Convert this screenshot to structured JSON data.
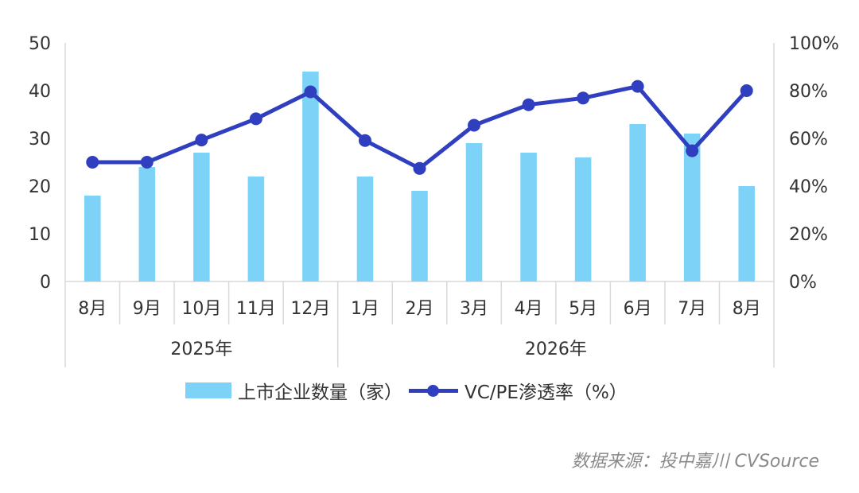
{
  "chart_data": {
    "type": "bar",
    "categories": [
      "8月",
      "9月",
      "10月",
      "11月",
      "12月",
      "1月",
      "2月",
      "3月",
      "4月",
      "5月",
      "6月",
      "7月",
      "8月"
    ],
    "groups": [
      {
        "label": "2025年",
        "count": 5
      },
      {
        "label": "2026年",
        "count": 8
      }
    ],
    "series": [
      {
        "name": "上市企业数量（家）",
        "type": "bar",
        "axis": "left",
        "values": [
          18,
          24,
          27,
          22,
          44,
          22,
          19,
          29,
          27,
          26,
          33,
          31,
          20
        ],
        "color": "#7dd3f7"
      },
      {
        "name": "VC/PE渗透率（%）",
        "type": "line",
        "axis": "right",
        "values": [
          50,
          50,
          59.3,
          68.2,
          79.5,
          59.1,
          47.4,
          65.5,
          74.1,
          76.9,
          81.8,
          54.8,
          80
        ],
        "color": "#2f3fbf"
      }
    ],
    "y_left": {
      "min": 0,
      "max": 50,
      "ticks": [
        "0",
        "10",
        "20",
        "30",
        "40",
        "50"
      ]
    },
    "y_right": {
      "min": 0,
      "max": 100,
      "ticks": [
        "0%",
        "20%",
        "40%",
        "60%",
        "80%",
        "100%"
      ]
    },
    "legend_position": "bottom",
    "grid": false
  },
  "source_text": "数据来源：投中嘉川 CVSource"
}
